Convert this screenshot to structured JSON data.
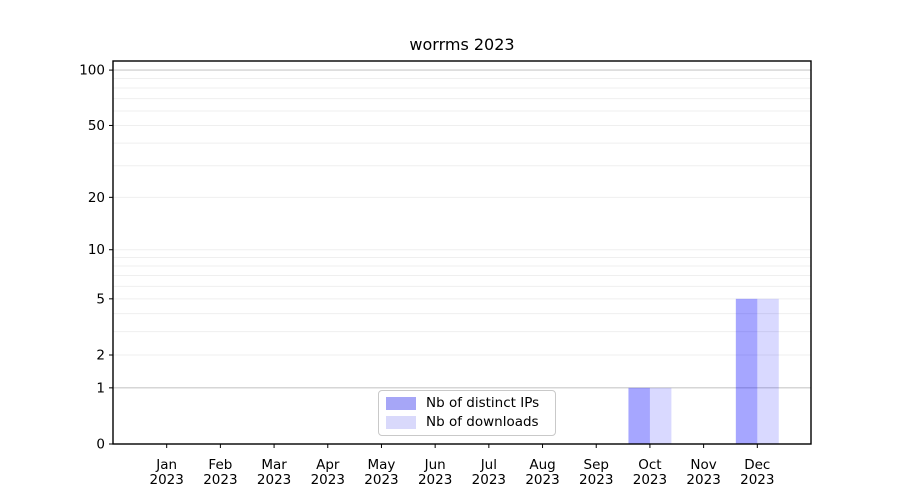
{
  "chart_data": {
    "type": "bar",
    "title": "worrms 2023",
    "yscale": "log1p",
    "ylim": [
      0,
      112
    ],
    "yticks": [
      0,
      1,
      2,
      5,
      10,
      20,
      50,
      100
    ],
    "gridlines_strong": [
      1,
      100
    ],
    "gridlines_faint": [
      2,
      3,
      4,
      5,
      6,
      7,
      8,
      9,
      10,
      20,
      30,
      40,
      50,
      60,
      70,
      80,
      90
    ],
    "grid_color_strong": "#c9c9c9",
    "grid_color_faint": "#efefef",
    "categories": [
      {
        "label": "Jan",
        "sublabel": "2023"
      },
      {
        "label": "Feb",
        "sublabel": "2023"
      },
      {
        "label": "Mar",
        "sublabel": "2023"
      },
      {
        "label": "Apr",
        "sublabel": "2023"
      },
      {
        "label": "May",
        "sublabel": "2023"
      },
      {
        "label": "Jun",
        "sublabel": "2023"
      },
      {
        "label": "Jul",
        "sublabel": "2023"
      },
      {
        "label": "Aug",
        "sublabel": "2023"
      },
      {
        "label": "Sep",
        "sublabel": "2023"
      },
      {
        "label": "Oct",
        "sublabel": "2023"
      },
      {
        "label": "Nov",
        "sublabel": "2023"
      },
      {
        "label": "Dec",
        "sublabel": "2023"
      }
    ],
    "series": [
      {
        "name": "Nb of distinct IPs",
        "color": "#0000ff",
        "fill_opacity": 0.35,
        "blended_hex": "#a6a6f7",
        "values": [
          0,
          0,
          0,
          0,
          0,
          0,
          0,
          0,
          0,
          1,
          0,
          5
        ]
      },
      {
        "name": "Nb of downloads",
        "color": "#0000ff",
        "fill_opacity": 0.15,
        "blended_hex": "#d9d9fb",
        "values": [
          0,
          0,
          0,
          0,
          0,
          0,
          0,
          0,
          0,
          1,
          0,
          5
        ]
      }
    ],
    "legend_position": "lower center",
    "grid": true
  }
}
